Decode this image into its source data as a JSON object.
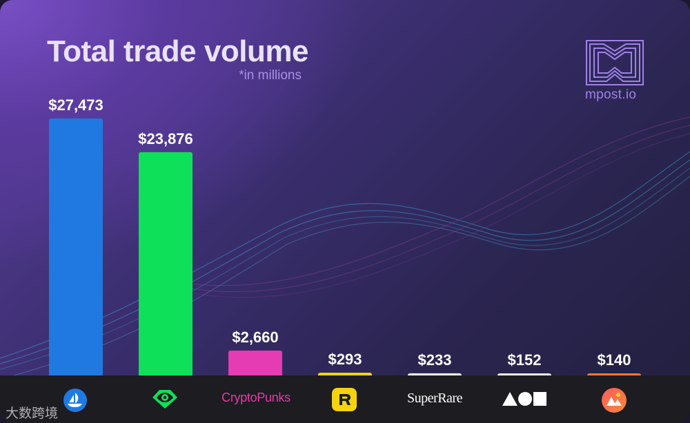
{
  "header": {
    "title": "Total trade volume",
    "subtitle": "*in millions"
  },
  "brand": {
    "name": "mpost.io"
  },
  "watermark": "大数跨境",
  "footer": {
    "marketplaces": [
      {
        "icon": "opensea-icon"
      },
      {
        "icon": "looksrare-icon"
      },
      {
        "icon": "cryptopunks-logo",
        "text": "CryptoPunks"
      },
      {
        "icon": "rarible-icon"
      },
      {
        "icon": "superrare-logo",
        "text": "SuperRare"
      },
      {
        "icon": "artblocks-icon"
      },
      {
        "icon": "foundation-icon"
      }
    ]
  },
  "chart_data": {
    "type": "bar",
    "title": "Total trade volume",
    "subtitle": "*in millions",
    "values": [
      27473,
      23876,
      2660,
      293,
      233,
      152,
      140
    ],
    "labels": [
      "$27,473",
      "$23,876",
      "$2,660",
      "$293",
      "$233",
      "$152",
      "$140"
    ],
    "colors": [
      "#2079e0",
      "#0fe05a",
      "#e53bb3",
      "#f5d30f",
      "#f2f2f2",
      "#f2f2f2",
      "#f07a3c"
    ],
    "ylim": [
      0,
      27473
    ],
    "grid": false,
    "legend": "none"
  }
}
